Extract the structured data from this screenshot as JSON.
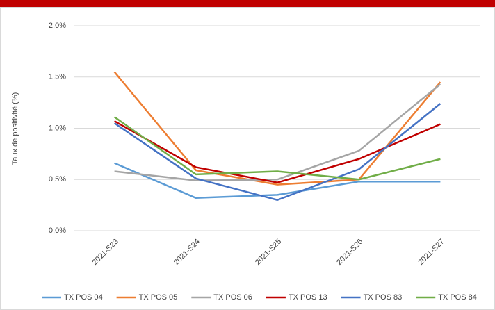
{
  "chart_data": {
    "type": "line",
    "y_label": "Taux de positivité (%)",
    "categories": [
      "2021-S23",
      "2021-S24",
      "2021-S25",
      "2021-S26",
      "2021-S27"
    ],
    "series": [
      {
        "name": "TX POS 04",
        "color": "#5b9bd5",
        "values": [
          0.66,
          0.32,
          0.35,
          0.48,
          0.48
        ]
      },
      {
        "name": "TX POS 05",
        "color": "#ed7d31",
        "values": [
          1.55,
          0.59,
          0.45,
          0.5,
          1.45
        ]
      },
      {
        "name": "TX POS 06",
        "color": "#a5a5a5",
        "values": [
          0.58,
          0.49,
          0.5,
          0.78,
          1.43
        ]
      },
      {
        "name": "TX POS 13",
        "color": "#c00000",
        "values": [
          1.07,
          0.62,
          0.47,
          0.7,
          1.04
        ]
      },
      {
        "name": "TX POS 83",
        "color": "#4472c4",
        "values": [
          1.05,
          0.51,
          0.3,
          0.6,
          1.24
        ]
      },
      {
        "name": "TX POS 84",
        "color": "#70ad47",
        "values": [
          1.11,
          0.55,
          0.58,
          0.5,
          0.7
        ]
      }
    ],
    "ylim": [
      0,
      2
    ],
    "yticks": [
      {
        "value": 0,
        "label": "0,0%"
      },
      {
        "value": 0.5,
        "label": "0,5%"
      },
      {
        "value": 1,
        "label": "1,0%"
      },
      {
        "value": 1.5,
        "label": "1,5%"
      },
      {
        "value": 2,
        "label": "2,0%"
      }
    ],
    "grid": true,
    "legend": "bottom"
  }
}
